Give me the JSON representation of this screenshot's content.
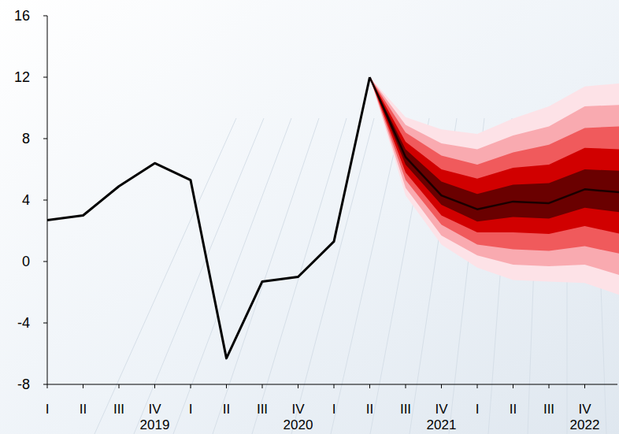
{
  "chart_data": {
    "type": "line",
    "categories": [
      "I",
      "II",
      "III",
      "IV",
      "I",
      "II",
      "III",
      "IV",
      "I",
      "II",
      "III",
      "IV",
      "I",
      "II",
      "III",
      "IV",
      null
    ],
    "year_labels": [
      {
        "label": "2019",
        "category": 3
      },
      {
        "label": "2020",
        "category": 7
      },
      {
        "label": "2021",
        "category": 11
      },
      {
        "label": "2022",
        "category": 15
      }
    ],
    "ylim": [
      -8,
      16
    ],
    "yticks": [
      -8,
      -4,
      0,
      4,
      8,
      12,
      16
    ],
    "grid": false,
    "series": [
      {
        "type": "band",
        "color": "#fde2e7",
        "lower": [
          null,
          null,
          null,
          null,
          null,
          null,
          null,
          null,
          null,
          12.0,
          4.3,
          1.1,
          -0.4,
          -1.2,
          -1.3,
          -1.4,
          -2.2
        ],
        "upper": [
          null,
          null,
          null,
          null,
          null,
          null,
          null,
          null,
          null,
          12.0,
          9.4,
          8.6,
          8.3,
          9.3,
          10.1,
          11.4,
          11.6
        ]
      },
      {
        "type": "band",
        "color": "#f9aab0",
        "lower": [
          null,
          null,
          null,
          null,
          null,
          null,
          null,
          null,
          null,
          12.0,
          4.8,
          1.7,
          0.4,
          -0.2,
          -0.3,
          -0.2,
          -0.9
        ],
        "upper": [
          null,
          null,
          null,
          null,
          null,
          null,
          null,
          null,
          null,
          12.0,
          8.9,
          7.7,
          7.3,
          8.2,
          8.8,
          10.1,
          10.2
        ]
      },
      {
        "type": "band",
        "color": "#f05a5c",
        "lower": [
          null,
          null,
          null,
          null,
          null,
          null,
          null,
          null,
          null,
          12.0,
          5.3,
          2.4,
          1.1,
          0.8,
          0.7,
          1.0,
          0.5
        ],
        "upper": [
          null,
          null,
          null,
          null,
          null,
          null,
          null,
          null,
          null,
          12.0,
          8.4,
          6.9,
          6.3,
          7.1,
          7.6,
          8.7,
          8.8
        ]
      },
      {
        "type": "band",
        "color": "#d10000",
        "lower": [
          null,
          null,
          null,
          null,
          null,
          null,
          null,
          null,
          null,
          12.0,
          5.8,
          3.0,
          1.9,
          1.9,
          1.8,
          2.3,
          1.8
        ],
        "upper": [
          null,
          null,
          null,
          null,
          null,
          null,
          null,
          null,
          null,
          12.0,
          7.8,
          6.0,
          5.4,
          6.1,
          6.3,
          7.4,
          7.3
        ]
      },
      {
        "type": "band",
        "color": "#6a0000",
        "lower": [
          null,
          null,
          null,
          null,
          null,
          null,
          null,
          null,
          null,
          12.0,
          6.3,
          3.7,
          2.6,
          2.9,
          2.8,
          3.5,
          3.2
        ],
        "upper": [
          null,
          null,
          null,
          null,
          null,
          null,
          null,
          null,
          null,
          12.0,
          7.3,
          5.2,
          4.4,
          5.0,
          5.1,
          6.0,
          5.9
        ]
      },
      {
        "type": "line",
        "color": "#1a0000",
        "values": [
          null,
          null,
          null,
          null,
          null,
          null,
          null,
          null,
          null,
          12.0,
          6.8,
          4.3,
          3.4,
          3.9,
          3.8,
          4.7,
          4.5
        ]
      },
      {
        "type": "line",
        "color": "#000000",
        "values": [
          2.7,
          3.0,
          4.9,
          6.4,
          5.3,
          -6.3,
          -1.3,
          -1.0,
          1.3,
          12.0,
          null,
          null,
          null,
          null,
          null,
          null,
          null
        ]
      }
    ]
  }
}
